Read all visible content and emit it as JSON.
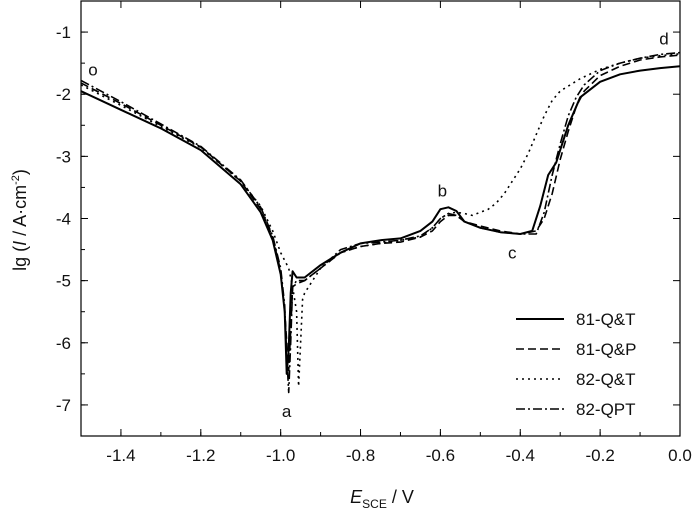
{
  "chart_data": {
    "type": "line",
    "xlabel": {
      "main": "E",
      "sub": "SCE",
      "unit": " / V"
    },
    "ylabel": {
      "prefix": "lg (",
      "italic": "I",
      "unit": " / A·cm",
      "sup": "-2",
      "suffix": ")"
    },
    "xlim": [
      -1.5,
      0.0
    ],
    "ylim": [
      -7.5,
      -0.5
    ],
    "xticks": [
      "-1.4",
      "-1.2",
      "-1.0",
      "-0.8",
      "-0.6",
      "-0.4",
      "-0.2",
      "0.0"
    ],
    "yticks": [
      "-1",
      "-2",
      "-3",
      "-4",
      "-5",
      "-6",
      "-7"
    ],
    "legend_position": "bottom-right",
    "annotations": [
      {
        "text": "o",
        "x": -1.47,
        "y": -1.6
      },
      {
        "text": "a",
        "x": -0.985,
        "y": -7.1
      },
      {
        "text": "b",
        "x": -0.595,
        "y": -3.55
      },
      {
        "text": "c",
        "x": -0.42,
        "y": -4.55
      },
      {
        "text": "d",
        "x": -0.04,
        "y": -1.1
      }
    ],
    "series": [
      {
        "name": "81-Q&T",
        "dash": "solid",
        "x": [
          -1.5,
          -1.4,
          -1.3,
          -1.2,
          -1.1,
          -1.05,
          -1.02,
          -1.0,
          -0.99,
          -0.985,
          -0.98,
          -0.975,
          -0.97,
          -0.96,
          -0.94,
          -0.9,
          -0.85,
          -0.8,
          -0.75,
          -0.7,
          -0.65,
          -0.62,
          -0.6,
          -0.58,
          -0.56,
          -0.54,
          -0.5,
          -0.45,
          -0.4,
          -0.37,
          -0.35,
          -0.33,
          -0.31,
          -0.3,
          -0.28,
          -0.25,
          -0.2,
          -0.15,
          -0.1,
          -0.05,
          0.0
        ],
        "y": [
          -1.95,
          -2.25,
          -2.55,
          -2.9,
          -3.45,
          -3.9,
          -4.35,
          -4.9,
          -5.5,
          -6.5,
          -6.1,
          -5.2,
          -4.85,
          -4.95,
          -4.95,
          -4.75,
          -4.55,
          -4.4,
          -4.35,
          -4.32,
          -4.2,
          -4.05,
          -3.85,
          -3.82,
          -3.88,
          -4.05,
          -4.15,
          -4.22,
          -4.25,
          -4.2,
          -3.8,
          -3.3,
          -3.1,
          -2.9,
          -2.5,
          -2.05,
          -1.8,
          -1.68,
          -1.62,
          -1.58,
          -1.55
        ]
      },
      {
        "name": "81-Q&P",
        "dash": "dashed",
        "x": [
          -1.5,
          -1.4,
          -1.3,
          -1.2,
          -1.1,
          -1.05,
          -1.02,
          -1.0,
          -0.99,
          -0.98,
          -0.975,
          -0.97,
          -0.96,
          -0.94,
          -0.9,
          -0.85,
          -0.8,
          -0.75,
          -0.7,
          -0.65,
          -0.62,
          -0.6,
          -0.58,
          -0.56,
          -0.54,
          -0.5,
          -0.45,
          -0.4,
          -0.36,
          -0.34,
          -0.32,
          -0.3,
          -0.28,
          -0.26,
          -0.24,
          -0.2,
          -0.15,
          -0.1,
          -0.05,
          0.0
        ],
        "y": [
          -1.82,
          -2.15,
          -2.5,
          -2.85,
          -3.4,
          -3.85,
          -4.3,
          -4.85,
          -5.5,
          -6.45,
          -5.8,
          -5.1,
          -5.05,
          -5.0,
          -4.8,
          -4.55,
          -4.45,
          -4.4,
          -4.38,
          -4.3,
          -4.2,
          -4.05,
          -3.95,
          -3.95,
          -4.05,
          -4.12,
          -4.2,
          -4.25,
          -4.2,
          -4.0,
          -3.6,
          -3.05,
          -2.6,
          -2.2,
          -1.95,
          -1.7,
          -1.55,
          -1.45,
          -1.4,
          -1.37
        ]
      },
      {
        "name": "82-Q&T",
        "dash": "dotted",
        "x": [
          -1.5,
          -1.4,
          -1.3,
          -1.2,
          -1.1,
          -1.05,
          -1.02,
          -1.0,
          -0.98,
          -0.97,
          -0.96,
          -0.955,
          -0.95,
          -0.945,
          -0.94,
          -0.92,
          -0.9,
          -0.85,
          -0.8,
          -0.75,
          -0.7,
          -0.65,
          -0.62,
          -0.6,
          -0.58,
          -0.56,
          -0.54,
          -0.52,
          -0.5,
          -0.48,
          -0.46,
          -0.44,
          -0.42,
          -0.4,
          -0.38,
          -0.36,
          -0.34,
          -0.32,
          -0.3,
          -0.25,
          -0.2,
          -0.15,
          -0.1,
          -0.05,
          0.0
        ],
        "y": [
          -1.85,
          -2.18,
          -2.52,
          -2.86,
          -3.4,
          -3.8,
          -4.2,
          -4.55,
          -4.8,
          -5.1,
          -5.5,
          -6.7,
          -6.0,
          -5.3,
          -5.2,
          -5.0,
          -4.8,
          -4.55,
          -4.45,
          -4.4,
          -4.35,
          -4.3,
          -4.15,
          -4.0,
          -3.92,
          -3.9,
          -3.92,
          -3.95,
          -3.9,
          -3.85,
          -3.75,
          -3.6,
          -3.4,
          -3.2,
          -2.95,
          -2.65,
          -2.35,
          -2.1,
          -1.95,
          -1.75,
          -1.6,
          -1.5,
          -1.42,
          -1.38,
          -1.35
        ]
      },
      {
        "name": "82-QPT",
        "dash": "dashdot",
        "x": [
          -1.5,
          -1.4,
          -1.3,
          -1.2,
          -1.1,
          -1.05,
          -1.02,
          -1.0,
          -0.99,
          -0.985,
          -0.98,
          -0.975,
          -0.97,
          -0.96,
          -0.94,
          -0.9,
          -0.85,
          -0.8,
          -0.75,
          -0.7,
          -0.65,
          -0.62,
          -0.6,
          -0.58,
          -0.56,
          -0.54,
          -0.5,
          -0.45,
          -0.4,
          -0.36,
          -0.34,
          -0.32,
          -0.3,
          -0.28,
          -0.26,
          -0.24,
          -0.2,
          -0.15,
          -0.1,
          -0.05,
          0.0
        ],
        "y": [
          -1.78,
          -2.12,
          -2.48,
          -2.84,
          -3.38,
          -3.82,
          -4.28,
          -4.8,
          -5.4,
          -6.2,
          -6.8,
          -6.0,
          -5.1,
          -5.0,
          -5.0,
          -4.8,
          -4.5,
          -4.4,
          -4.38,
          -4.35,
          -4.28,
          -4.15,
          -4.0,
          -3.92,
          -3.95,
          -4.05,
          -4.15,
          -4.22,
          -4.25,
          -4.25,
          -3.9,
          -3.3,
          -2.8,
          -2.35,
          -2.05,
          -1.85,
          -1.62,
          -1.5,
          -1.42,
          -1.36,
          -1.33
        ]
      }
    ]
  }
}
